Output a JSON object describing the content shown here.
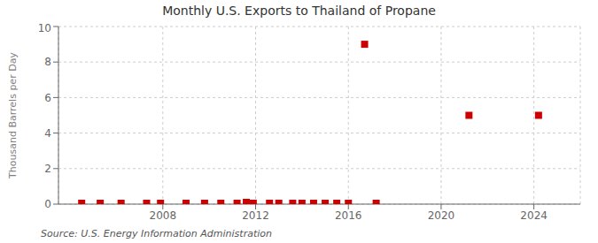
{
  "chart_data": {
    "type": "scatter",
    "title": "Monthly U.S. Exports to Thailand of Propane",
    "ylabel": "Thousand Barrels per Day",
    "annotations": [
      "Source: U.S. Energy Information Administration"
    ],
    "x": [
      2004.5,
      2005.3,
      2006.2,
      2007.3,
      2007.9,
      2009.0,
      2009.8,
      2010.5,
      2011.2,
      2011.6,
      2011.9,
      2012.6,
      2013.0,
      2013.6,
      2014.0,
      2014.5,
      2015.0,
      2015.5,
      2016.0,
      2016.7,
      2017.2,
      2021.2,
      2024.2
    ],
    "values": [
      0.05,
      0.05,
      0.05,
      0.05,
      0.05,
      0.05,
      0.05,
      0.05,
      0.05,
      0.1,
      0.05,
      0.05,
      0.05,
      0.05,
      0.05,
      0.05,
      0.05,
      0.05,
      0.05,
      9.0,
      0.05,
      5.0,
      5.0
    ],
    "color": "#cc0000",
    "marker": "square",
    "xlim": [
      2003.5,
      2026
    ],
    "ylim": [
      0,
      10
    ],
    "xticks": [
      2008,
      2012,
      2016,
      2020,
      2024
    ],
    "yticks": [
      0,
      2,
      4,
      6,
      8,
      10
    ],
    "grid": true
  }
}
